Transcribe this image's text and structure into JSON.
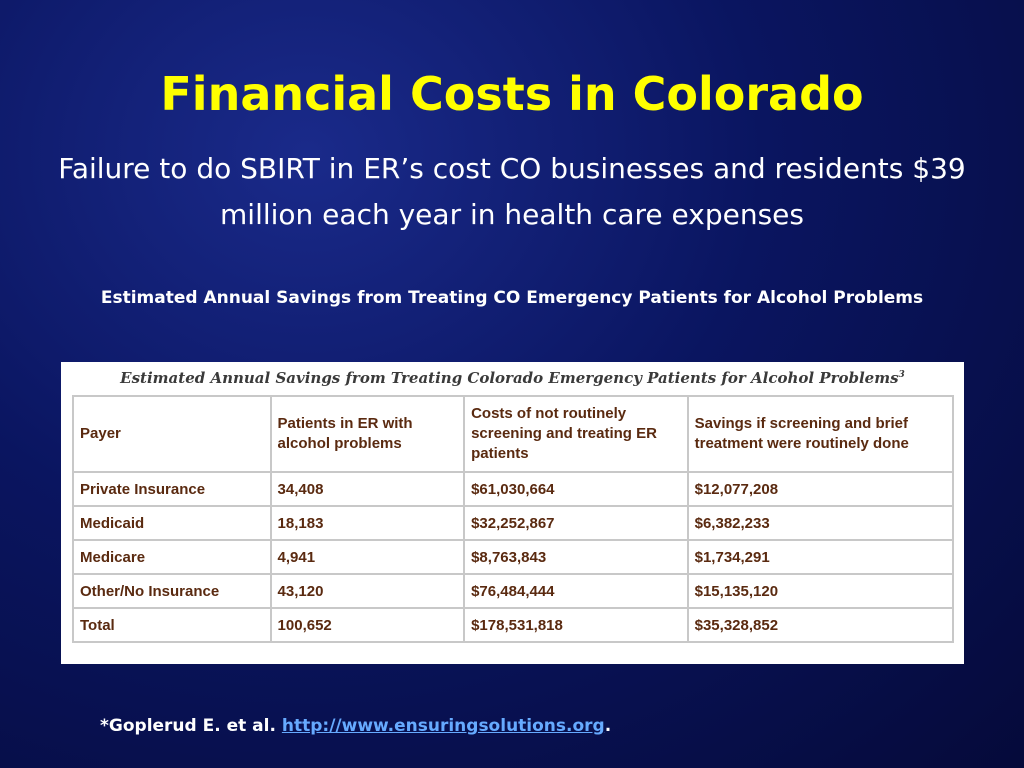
{
  "slide": {
    "title": "Financial Costs in Colorado",
    "subtitle": "Failure to do SBIRT in ER’s cost CO businesses and residents $39 million each year in health care expenses",
    "table_caption": "Estimated Annual Savings from Treating CO Emergency Patients for Alcohol Problems"
  },
  "table": {
    "panel_title": "Estimated Annual Savings from Treating Colorado Emergency Patients for Alcohol Problems",
    "panel_title_superscript": "3",
    "headers": [
      "Payer",
      "Patients in ER with alcohol problems",
      "Costs of not routinely screening and treating ER patients",
      "Savings if screening and brief treatment were routinely done"
    ],
    "rows": [
      [
        "Private Insurance",
        "34,408",
        "$61,030,664",
        "$12,077,208"
      ],
      [
        "Medicaid",
        "18,183",
        "$32,252,867",
        "$6,382,233"
      ],
      [
        "Medicare",
        "4,941",
        "$8,763,843",
        "$1,734,291"
      ],
      [
        "Other/No Insurance",
        "43,120",
        "$76,484,444",
        "$15,135,120"
      ],
      [
        "Total",
        "100,652",
        "$178,531,818",
        "$35,328,852"
      ]
    ]
  },
  "footnote": {
    "citation": "*Goplerud E. et al.",
    "link_text": "http://www.ensuringsolutions.org",
    "trailing": "."
  },
  "colors": {
    "title": "#ffff00",
    "link": "#66aaff",
    "background": "#0a1560"
  }
}
